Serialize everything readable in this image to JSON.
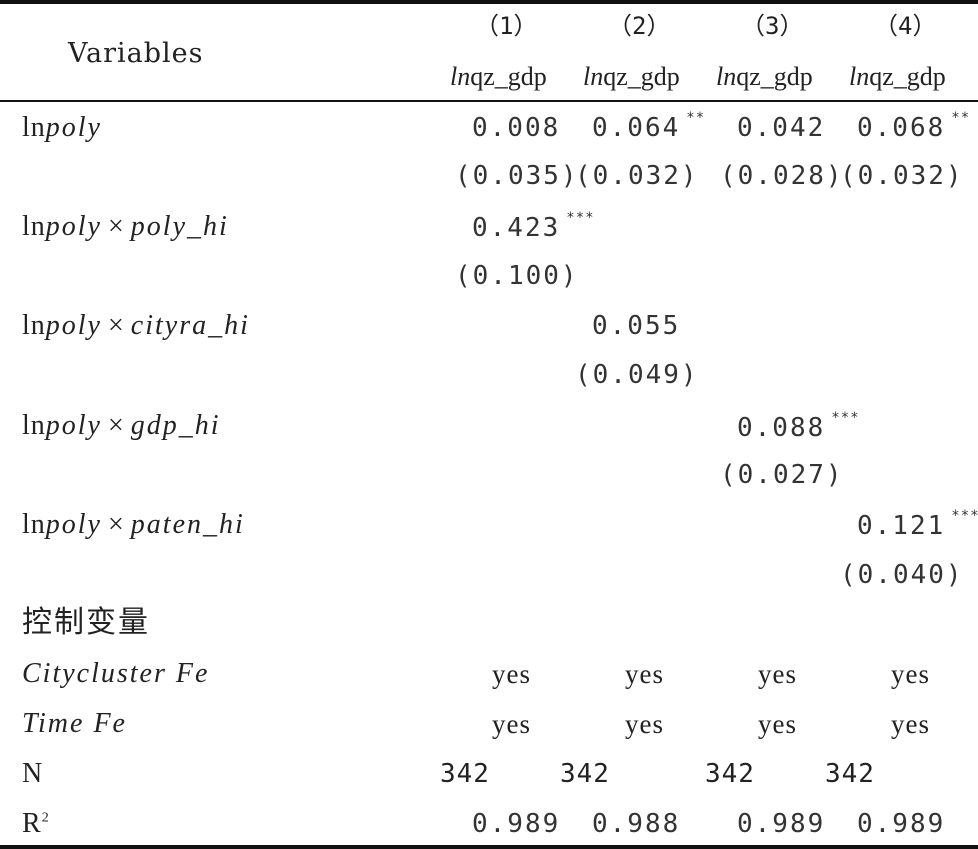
{
  "header": {
    "variables_label": "Variables",
    "columns": [
      {
        "num": "（1）",
        "var_prefix": "ln",
        "var_name": "qz_gdp"
      },
      {
        "num": "（2）",
        "var_prefix": "ln",
        "var_name": "qz_gdp"
      },
      {
        "num": "（3）",
        "var_prefix": "ln",
        "var_name": "qz_gdp"
      },
      {
        "num": "（4）",
        "var_prefix": "ln",
        "var_name": "qz_gdp"
      }
    ]
  },
  "rows": {
    "lnpoly": {
      "label_ln": "ln",
      "label_var": "poly",
      "coef": [
        {
          "value": "0.008",
          "stars": ""
        },
        {
          "value": "0.064",
          "stars": "**"
        },
        {
          "value": "0.042",
          "stars": ""
        },
        {
          "value": "0.068",
          "stars": "**"
        }
      ],
      "se": [
        "(0.035)",
        "(0.032)",
        "(0.028)",
        "(0.032)"
      ]
    },
    "poly_hi": {
      "label_ln": "ln",
      "label_var": "poly",
      "label_op": "×",
      "label_interact": "poly_hi",
      "coef": {
        "value": "0.423",
        "stars": "***"
      },
      "se": "(0.100)"
    },
    "cityra_hi": {
      "label_ln": "ln",
      "label_var": "poly",
      "label_op": "×",
      "label_interact": "cityra_hi",
      "coef": {
        "value": "0.055",
        "stars": ""
      },
      "se": "(0.049)"
    },
    "gdp_hi": {
      "label_ln": "ln",
      "label_var": "poly",
      "label_op": "×",
      "label_interact": "gdp_hi",
      "coef": {
        "value": "0.088",
        "stars": "***"
      },
      "se": "(0.027)"
    },
    "paten_hi": {
      "label_ln": "ln",
      "label_var": "poly",
      "label_op": "×",
      "label_interact": "paten_hi",
      "coef": {
        "value": "0.121",
        "stars": "***"
      },
      "se": "(0.040)"
    },
    "controls": {
      "label": "控制变量"
    },
    "citycluster_fe": {
      "label": "Citycluster Fe",
      "values": [
        "yes",
        "yes",
        "yes",
        "yes"
      ]
    },
    "time_fe": {
      "label": "Time Fe",
      "values": [
        "yes",
        "yes",
        "yes",
        "yes"
      ]
    },
    "n": {
      "label": "N",
      "values": [
        "342",
        "342",
        "342",
        "342"
      ]
    },
    "r2": {
      "label_base": "R",
      "label_sup": "2",
      "values": [
        "0.989",
        "0.988",
        "0.989",
        "0.989"
      ]
    }
  }
}
